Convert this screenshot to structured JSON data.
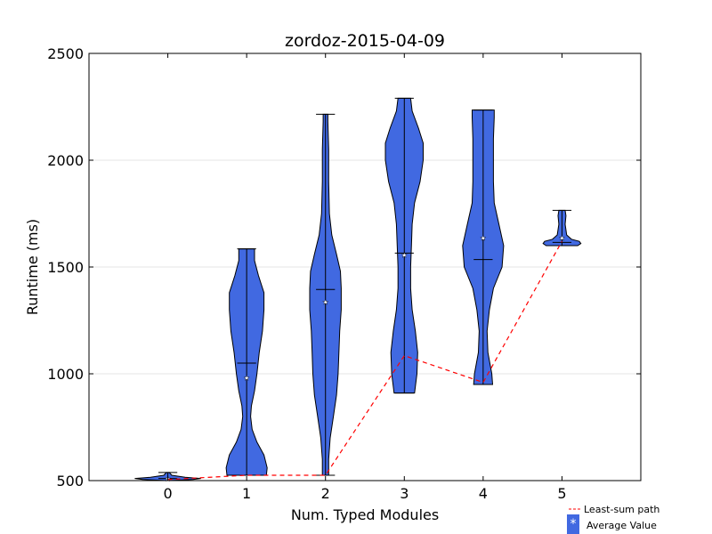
{
  "chart_data": {
    "type": "violin",
    "title": "zordoz-2015-04-09",
    "xlabel": "Num. Typed Modules",
    "ylabel": "Runtime (ms)",
    "xlim": [
      -1,
      6
    ],
    "ylim": [
      500,
      2500
    ],
    "xticks": [
      0,
      1,
      2,
      3,
      4,
      5
    ],
    "yticks": [
      500,
      1000,
      1500,
      2000,
      2500
    ],
    "violin_color": "#4169e1",
    "path_color": "#ff0000",
    "violins": [
      {
        "x": 0,
        "min": 500,
        "max": 538,
        "median": 510,
        "mean": 508,
        "profile": [
          [
            500,
            0.02
          ],
          [
            505,
            0.32
          ],
          [
            510,
            0.42
          ],
          [
            516,
            0.22
          ],
          [
            525,
            0.05
          ],
          [
            538,
            0.02
          ]
        ]
      },
      {
        "x": 1,
        "min": 525,
        "max": 1585,
        "median": 1050,
        "mean": 980,
        "profile": [
          [
            525,
            0.25
          ],
          [
            560,
            0.26
          ],
          [
            620,
            0.22
          ],
          [
            680,
            0.13
          ],
          [
            740,
            0.07
          ],
          [
            800,
            0.05
          ],
          [
            850,
            0.06
          ],
          [
            920,
            0.1
          ],
          [
            1000,
            0.13
          ],
          [
            1100,
            0.16
          ],
          [
            1200,
            0.2
          ],
          [
            1300,
            0.22
          ],
          [
            1380,
            0.22
          ],
          [
            1460,
            0.15
          ],
          [
            1530,
            0.1
          ],
          [
            1585,
            0.1
          ]
        ]
      },
      {
        "x": 2,
        "min": 525,
        "max": 2215,
        "median": 1395,
        "mean": 1335,
        "profile": [
          [
            525,
            0.04
          ],
          [
            600,
            0.04
          ],
          [
            700,
            0.06
          ],
          [
            800,
            0.1
          ],
          [
            900,
            0.14
          ],
          [
            1000,
            0.16
          ],
          [
            1100,
            0.17
          ],
          [
            1200,
            0.18
          ],
          [
            1300,
            0.2
          ],
          [
            1400,
            0.2
          ],
          [
            1480,
            0.19
          ],
          [
            1560,
            0.14
          ],
          [
            1650,
            0.08
          ],
          [
            1750,
            0.05
          ],
          [
            1900,
            0.04
          ],
          [
            2050,
            0.04
          ],
          [
            2180,
            0.03
          ],
          [
            2215,
            0.03
          ]
        ]
      },
      {
        "x": 3,
        "min": 910,
        "max": 2290,
        "median": 1565,
        "mean": 1555,
        "profile": [
          [
            910,
            0.13
          ],
          [
            1000,
            0.16
          ],
          [
            1100,
            0.17
          ],
          [
            1200,
            0.14
          ],
          [
            1300,
            0.1
          ],
          [
            1400,
            0.08
          ],
          [
            1500,
            0.08
          ],
          [
            1600,
            0.09
          ],
          [
            1700,
            0.1
          ],
          [
            1800,
            0.13
          ],
          [
            1900,
            0.2
          ],
          [
            2000,
            0.24
          ],
          [
            2080,
            0.24
          ],
          [
            2150,
            0.18
          ],
          [
            2230,
            0.1
          ],
          [
            2290,
            0.08
          ]
        ]
      },
      {
        "x": 4,
        "min": 950,
        "max": 2235,
        "median": 1535,
        "mean": 1635,
        "profile": [
          [
            950,
            0.12
          ],
          [
            1000,
            0.11
          ],
          [
            1100,
            0.06
          ],
          [
            1200,
            0.05
          ],
          [
            1300,
            0.08
          ],
          [
            1400,
            0.13
          ],
          [
            1500,
            0.24
          ],
          [
            1600,
            0.26
          ],
          [
            1700,
            0.2
          ],
          [
            1800,
            0.14
          ],
          [
            1900,
            0.13
          ],
          [
            2000,
            0.13
          ],
          [
            2100,
            0.13
          ],
          [
            2200,
            0.14
          ],
          [
            2235,
            0.14
          ]
        ]
      },
      {
        "x": 5,
        "min": 1600,
        "max": 1765,
        "median": 1615,
        "mean": 1635,
        "profile": [
          [
            1600,
            0.2
          ],
          [
            1610,
            0.24
          ],
          [
            1620,
            0.22
          ],
          [
            1630,
            0.12
          ],
          [
            1650,
            0.06
          ],
          [
            1700,
            0.04
          ],
          [
            1740,
            0.05
          ],
          [
            1765,
            0.04
          ]
        ]
      }
    ],
    "least_sum_path": {
      "x": [
        0,
        1,
        2,
        3,
        4,
        5
      ],
      "y": [
        505,
        525,
        525,
        1085,
        960,
        1620
      ]
    },
    "legend": {
      "position": "bottom-right",
      "entries": [
        "Least-sum path",
        "Average Value"
      ],
      "marker_glyph": "*"
    }
  }
}
